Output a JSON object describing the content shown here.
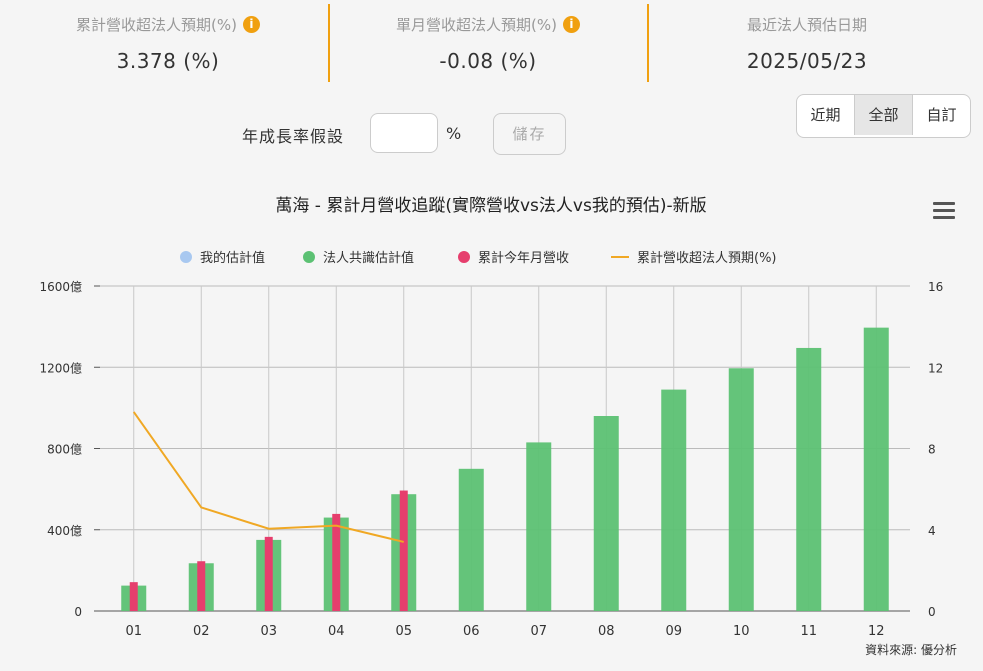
{
  "stats": [
    {
      "label": "累計營收超法人預期(%)",
      "value": "3.378 (%)",
      "info": true
    },
    {
      "label": "單月營收超法人預期(%)",
      "value": "-0.08 (%)",
      "info": true
    },
    {
      "label": "最近法人預估日期",
      "value": "2025/05/23",
      "info": false
    }
  ],
  "growth": {
    "label": "年成長率假設",
    "unit": "%",
    "save_label": "儲存",
    "input_value": ""
  },
  "range_buttons": [
    "近期",
    "全部",
    "自訂"
  ],
  "range_active": "全部",
  "menu_icon": "hamburger-menu-icon",
  "colors": {
    "accent": "#f0a010",
    "my_estimate": "#a8c8f0",
    "consensus": "#5cc173",
    "actual": "#e63e6d",
    "line": "#f0a824"
  },
  "source": "資料來源: 優分析",
  "chart_data": {
    "type": "bar",
    "title": "萬海 - 累計月營收追蹤(實際營收vs法人vs我的預估)-新版",
    "categories": [
      "01",
      "02",
      "03",
      "04",
      "05",
      "06",
      "07",
      "08",
      "09",
      "10",
      "11",
      "12"
    ],
    "series": [
      {
        "name": "我的估計值",
        "kind": "bar",
        "values": [
          null,
          null,
          null,
          null,
          null,
          null,
          null,
          null,
          null,
          null,
          null,
          null
        ]
      },
      {
        "name": "法人共識估計值",
        "kind": "bar",
        "values": [
          125,
          235,
          350,
          460,
          575,
          700,
          830,
          960,
          1090,
          1195,
          1295,
          1395
        ]
      },
      {
        "name": "累計今年月營收",
        "kind": "bar",
        "values": [
          142,
          245,
          365,
          478,
          593,
          null,
          null,
          null,
          null,
          null,
          null,
          null
        ]
      },
      {
        "name": "累計營收超法人預期(%)",
        "kind": "line",
        "axis": "right",
        "values": [
          9.8,
          5.1,
          4.05,
          4.2,
          3.4,
          null,
          null,
          null,
          null,
          null,
          null,
          null
        ]
      }
    ],
    "left_axis": {
      "ticks": [
        "0",
        "400億",
        "800億",
        "1200億",
        "1600億"
      ],
      "ylim": [
        0,
        1600
      ]
    },
    "right_axis": {
      "ticks": [
        "0",
        "4",
        "8",
        "12",
        "16"
      ],
      "ylim": [
        0,
        16
      ]
    },
    "grid": true,
    "legend_position": "top-center"
  }
}
